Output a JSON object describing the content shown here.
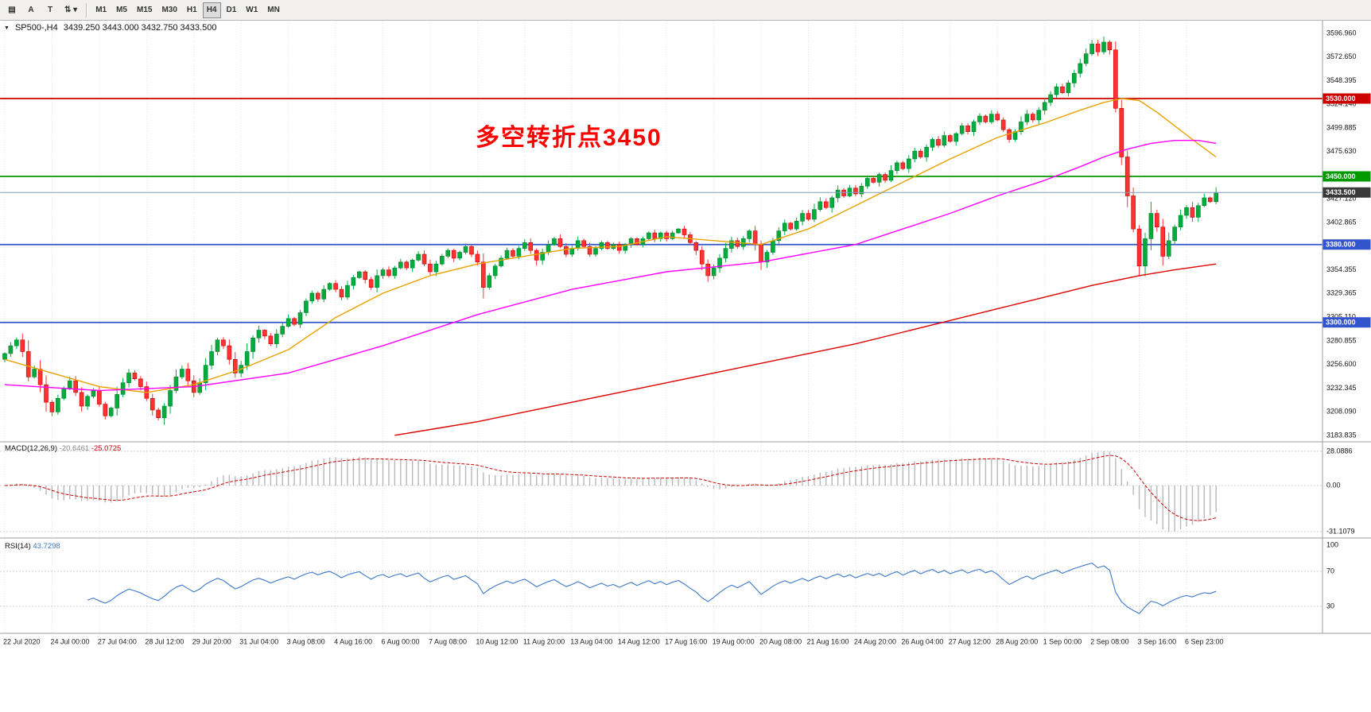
{
  "toolbar": {
    "tools": [
      {
        "name": "window-layout",
        "glyph": "▤"
      },
      {
        "name": "text-label-tool",
        "glyph": "A"
      },
      {
        "name": "text-tool",
        "glyph": "T"
      },
      {
        "name": "scale-tool",
        "glyph": "⇅",
        "caret": "▾"
      }
    ],
    "timeframes": [
      "M1",
      "M5",
      "M15",
      "M30",
      "H1",
      "H4",
      "D1",
      "W1",
      "MN"
    ],
    "active_timeframe": "H4"
  },
  "chart": {
    "title_symbol": "SP500-,H4",
    "ohlc": "3439.250 3443.000 3432.750 3433.500",
    "annotation": {
      "text": "多空转折点3450",
      "color": "#ff0000"
    },
    "price_axis_ticks": [
      "3596.960",
      "3572.650",
      "3548.395",
      "3524.140",
      "3499.885",
      "3475.630",
      "3451.375",
      "3427.120",
      "3402.865",
      "3378.610",
      "3354.355",
      "3329.365",
      "3305.110",
      "3280.855",
      "3256.600",
      "3232.345",
      "3208.090",
      "3183.835"
    ],
    "levels": [
      {
        "price": 3530.0,
        "label": "3530.000",
        "color": "#cc0000",
        "width": 1.8
      },
      {
        "price": 3450.0,
        "label": "3450.000",
        "color": "#009900",
        "width": 1.8
      },
      {
        "price": 3380.0,
        "label": "3380.000",
        "color": "#3355cc",
        "width": 1.8
      },
      {
        "price": 3300.0,
        "label": "3300.000",
        "color": "#3355cc",
        "width": 1.8
      }
    ],
    "current_price": {
      "value": 3433.5,
      "label": "3433.500",
      "line_color": "#7f9db9",
      "tag_color": "#3a3a3a"
    }
  },
  "chart_data": {
    "type": "candlestick",
    "symbol": "SP500-",
    "timeframe": "H4",
    "price_range": [
      3183.835,
      3596.96
    ],
    "x_labels": [
      "22 Jul 2020",
      "24 Jul 00:00",
      "27 Jul 04:00",
      "28 Jul 12:00",
      "29 Jul 20:00",
      "31 Jul 04:00",
      "3 Aug 08:00",
      "4 Aug 16:00",
      "6 Aug 00:00",
      "7 Aug 08:00",
      "10 Aug 12:00",
      "11 Aug 20:00",
      "13 Aug 04:00",
      "14 Aug 12:00",
      "17 Aug 16:00",
      "19 Aug 00:00",
      "20 Aug 08:00",
      "21 Aug 16:00",
      "24 Aug 20:00",
      "26 Aug 04:00",
      "27 Aug 12:00",
      "28 Aug 20:00",
      "1 Sep 00:00",
      "2 Sep 08:00",
      "3 Sep 16:00",
      "6 Sep 23:00"
    ],
    "candles_per_label": 8,
    "open_first": 3262,
    "candle_up": "#00ad3c",
    "candle_up_border": "#00802c",
    "candle_down": "#ff3232",
    "candle_down_border": "#c00000",
    "closes": [
      3268,
      3276,
      3282,
      3270,
      3244,
      3252,
      3236,
      3218,
      3208,
      3222,
      3232,
      3240,
      3228,
      3214,
      3224,
      3230,
      3216,
      3204,
      3212,
      3226,
      3238,
      3248,
      3242,
      3234,
      3222,
      3210,
      3202,
      3214,
      3230,
      3244,
      3252,
      3240,
      3228,
      3238,
      3256,
      3270,
      3282,
      3276,
      3262,
      3248,
      3256,
      3270,
      3284,
      3292,
      3286,
      3278,
      3288,
      3296,
      3304,
      3298,
      3310,
      3322,
      3330,
      3324,
      3334,
      3340,
      3334,
      3326,
      3338,
      3346,
      3352,
      3344,
      3336,
      3348,
      3354,
      3348,
      3356,
      3362,
      3356,
      3364,
      3370,
      3360,
      3352,
      3360,
      3368,
      3374,
      3366,
      3372,
      3378,
      3370,
      3362,
      3336,
      3348,
      3358,
      3366,
      3374,
      3368,
      3376,
      3382,
      3374,
      3364,
      3372,
      3380,
      3386,
      3378,
      3370,
      3376,
      3384,
      3378,
      3370,
      3376,
      3382,
      3376,
      3380,
      3374,
      3380,
      3386,
      3380,
      3386,
      3392,
      3386,
      3392,
      3386,
      3392,
      3396,
      3390,
      3382,
      3374,
      3360,
      3348,
      3356,
      3366,
      3376,
      3384,
      3378,
      3386,
      3394,
      3380,
      3362,
      3372,
      3384,
      3394,
      3402,
      3396,
      3404,
      3412,
      3406,
      3416,
      3424,
      3418,
      3428,
      3436,
      3430,
      3438,
      3432,
      3440,
      3448,
      3444,
      3452,
      3446,
      3456,
      3464,
      3458,
      3468,
      3476,
      3470,
      3480,
      3488,
      3482,
      3492,
      3486,
      3494,
      3502,
      3496,
      3506,
      3512,
      3506,
      3514,
      3508,
      3498,
      3488,
      3496,
      3506,
      3514,
      3508,
      3518,
      3526,
      3534,
      3542,
      3536,
      3546,
      3556,
      3566,
      3576,
      3586,
      3578,
      3588,
      3580,
      3520,
      3470,
      3430,
      3396,
      3358,
      3386,
      3412,
      3398,
      3368,
      3384,
      3398,
      3410,
      3418,
      3408,
      3420,
      3428,
      3424,
      3433.5
    ],
    "moving_averages": [
      {
        "name": "fast",
        "color": "#e8a200",
        "points": [
          [
            0,
            3262
          ],
          [
            8,
            3248
          ],
          [
            16,
            3234
          ],
          [
            24,
            3228
          ],
          [
            32,
            3236
          ],
          [
            40,
            3252
          ],
          [
            48,
            3272
          ],
          [
            56,
            3305
          ],
          [
            64,
            3330
          ],
          [
            72,
            3348
          ],
          [
            80,
            3360
          ],
          [
            88,
            3368
          ],
          [
            96,
            3376
          ],
          [
            104,
            3378
          ],
          [
            112,
            3388
          ],
          [
            120,
            3384
          ],
          [
            128,
            3380
          ],
          [
            136,
            3396
          ],
          [
            144,
            3420
          ],
          [
            152,
            3444
          ],
          [
            160,
            3468
          ],
          [
            168,
            3490
          ],
          [
            176,
            3505
          ],
          [
            182,
            3518
          ],
          [
            186,
            3526
          ],
          [
            189,
            3530
          ],
          [
            192,
            3528
          ],
          [
            195,
            3516
          ],
          [
            198,
            3502
          ],
          [
            201,
            3488
          ],
          [
            205,
            3470
          ]
        ]
      },
      {
        "name": "medium",
        "color": "#ff00ff",
        "points": [
          [
            0,
            3236
          ],
          [
            16,
            3230
          ],
          [
            32,
            3234
          ],
          [
            48,
            3248
          ],
          [
            64,
            3276
          ],
          [
            80,
            3308
          ],
          [
            96,
            3334
          ],
          [
            112,
            3352
          ],
          [
            128,
            3362
          ],
          [
            144,
            3380
          ],
          [
            152,
            3396
          ],
          [
            160,
            3412
          ],
          [
            168,
            3430
          ],
          [
            176,
            3446
          ],
          [
            182,
            3460
          ],
          [
            186,
            3470
          ],
          [
            190,
            3478
          ],
          [
            194,
            3484
          ],
          [
            198,
            3487
          ],
          [
            202,
            3487
          ],
          [
            205,
            3484
          ]
        ]
      },
      {
        "name": "slow",
        "color": "#dd0000",
        "points": [
          [
            66,
            3184
          ],
          [
            72,
            3190
          ],
          [
            80,
            3198
          ],
          [
            88,
            3208
          ],
          [
            96,
            3218
          ],
          [
            104,
            3228
          ],
          [
            112,
            3238
          ],
          [
            120,
            3248
          ],
          [
            128,
            3258
          ],
          [
            136,
            3268
          ],
          [
            144,
            3278
          ],
          [
            152,
            3290
          ],
          [
            160,
            3302
          ],
          [
            168,
            3314
          ],
          [
            176,
            3326
          ],
          [
            184,
            3338
          ],
          [
            192,
            3348
          ],
          [
            198,
            3354
          ],
          [
            205,
            3360
          ]
        ]
      }
    ]
  },
  "macd": {
    "name": "MACD(12,26,9)",
    "value_main": "-20.6461",
    "value_signal": "-25.0725",
    "params": {
      "fast": 12,
      "slow": 26,
      "signal": 9
    },
    "axis": [
      "28.0886",
      "0.00",
      "-31.1079"
    ],
    "histogram_color": "#b8b8b8",
    "signal_color": "#cc0000"
  },
  "rsi": {
    "name": "RSI(14)",
    "value": "43.7298",
    "period": 14,
    "axis": [
      "100",
      "70",
      "30"
    ],
    "axis_values": [
      100,
      70,
      30
    ],
    "levels": [
      70,
      30
    ],
    "line_color": "#3c78c8"
  }
}
